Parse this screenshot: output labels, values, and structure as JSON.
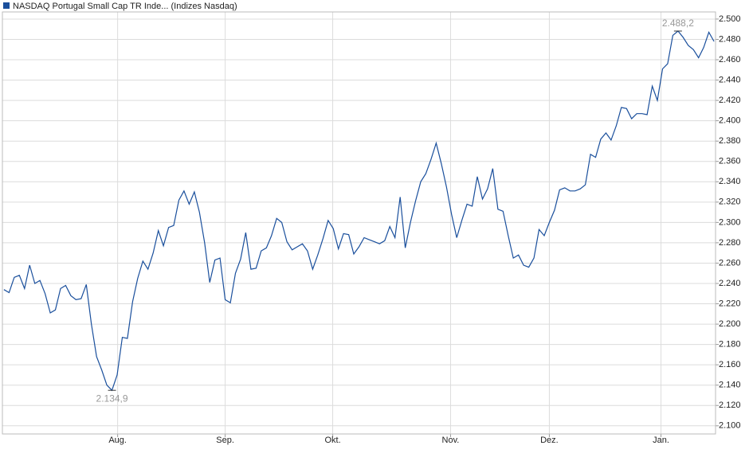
{
  "chart_data": {
    "type": "line",
    "series": [
      {
        "name": "NASDAQ Portugal Small Cap TR Inde... (Indizes Nasdaq)",
        "color": "#1a4f9c",
        "values": [
          2.234,
          2.231,
          2.246,
          2.248,
          2.235,
          2.258,
          2.24,
          2.243,
          2.23,
          2.211,
          2.214,
          2.235,
          2.238,
          2.228,
          2.224,
          2.225,
          2.239,
          2.2,
          2.168,
          2.155,
          2.14,
          2.1349,
          2.15,
          2.187,
          2.186,
          2.222,
          2.245,
          2.262,
          2.254,
          2.27,
          2.292,
          2.277,
          2.295,
          2.297,
          2.322,
          2.331,
          2.318,
          2.33,
          2.31,
          2.28,
          2.241,
          2.263,
          2.265,
          2.224,
          2.221,
          2.25,
          2.264,
          2.29,
          2.254,
          2.255,
          2.272,
          2.275,
          2.287,
          2.304,
          2.3,
          2.281,
          2.273,
          2.276,
          2.279,
          2.272,
          2.254,
          2.268,
          2.284,
          2.302,
          2.294,
          2.274,
          2.289,
          2.288,
          2.269,
          2.276,
          2.285,
          2.283,
          2.281,
          2.279,
          2.282,
          2.296,
          2.285,
          2.325,
          2.275,
          2.3,
          2.321,
          2.34,
          2.348,
          2.362,
          2.378,
          2.358,
          2.335,
          2.308,
          2.285,
          2.302,
          2.318,
          2.316,
          2.345,
          2.323,
          2.333,
          2.353,
          2.313,
          2.311,
          2.287,
          2.265,
          2.268,
          2.258,
          2.256,
          2.265,
          2.293,
          2.287,
          2.3,
          2.312,
          2.332,
          2.334,
          2.331,
          2.331,
          2.333,
          2.337,
          2.367,
          2.364,
          2.382,
          2.388,
          2.381,
          2.395,
          2.413,
          2.412,
          2.402,
          2.407,
          2.407,
          2.406,
          2.434,
          2.42,
          2.451,
          2.456,
          2.484,
          2.4882,
          2.482,
          2.474,
          2.47,
          2.462,
          2.472,
          2.487,
          2.478
        ]
      }
    ],
    "annotations": [
      {
        "text": "2.488,2",
        "x": 131,
        "y": 2.4882
      },
      {
        "text": "2.134,9",
        "x": 21,
        "y": 2.1349
      }
    ],
    "xlim": [
      -0.3,
      138.3
    ],
    "xticks": [
      {
        "value": 22.1,
        "label": "Aug."
      },
      {
        "value": 43,
        "label": "Sep."
      },
      {
        "value": 63.9,
        "label": "Okt."
      },
      {
        "value": 86.8,
        "label": "Nov."
      },
      {
        "value": 106,
        "label": "Dez."
      },
      {
        "value": 127.7,
        "label": "Jan."
      }
    ],
    "ylim": [
      2.092,
      2.507
    ],
    "yticks": [
      {
        "value": 2.1,
        "label": "2.100"
      },
      {
        "value": 2.12,
        "label": "2.120"
      },
      {
        "value": 2.14,
        "label": "2.140"
      },
      {
        "value": 2.16,
        "label": "2.160"
      },
      {
        "value": 2.18,
        "label": "2.180"
      },
      {
        "value": 2.2,
        "label": "2.200"
      },
      {
        "value": 2.22,
        "label": "2.220"
      },
      {
        "value": 2.24,
        "label": "2.240"
      },
      {
        "value": 2.26,
        "label": "2.260"
      },
      {
        "value": 2.28,
        "label": "2.280"
      },
      {
        "value": 2.3,
        "label": "2.300"
      },
      {
        "value": 2.32,
        "label": "2.320"
      },
      {
        "value": 2.34,
        "label": "2.340"
      },
      {
        "value": 2.36,
        "label": "2.360"
      },
      {
        "value": 2.38,
        "label": "2.380"
      },
      {
        "value": 2.4,
        "label": "2.400"
      },
      {
        "value": 2.42,
        "label": "2.420"
      },
      {
        "value": 2.44,
        "label": "2.440"
      },
      {
        "value": 2.46,
        "label": "2.460"
      },
      {
        "value": 2.48,
        "label": "2.480"
      },
      {
        "value": 2.5,
        "label": "2.500"
      }
    ],
    "grid": true
  }
}
